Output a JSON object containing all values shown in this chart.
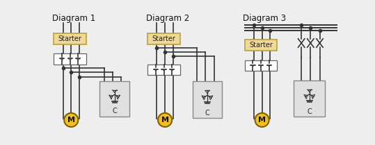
{
  "bg_color": "#eeeeee",
  "diagrams": [
    "Diagram 1",
    "Diagram 2",
    "Diagram 3"
  ],
  "starter_color": "#f0d898",
  "starter_border": "#b8a040",
  "wire_color": "#333333",
  "motor_fill": "#f0c020",
  "motor_edge": "#806000",
  "cap_fill": "#e0e0e0",
  "cap_edge": "#888888",
  "lw": 1.2,
  "title_fs": 8.5,
  "label_fs": 7.0
}
